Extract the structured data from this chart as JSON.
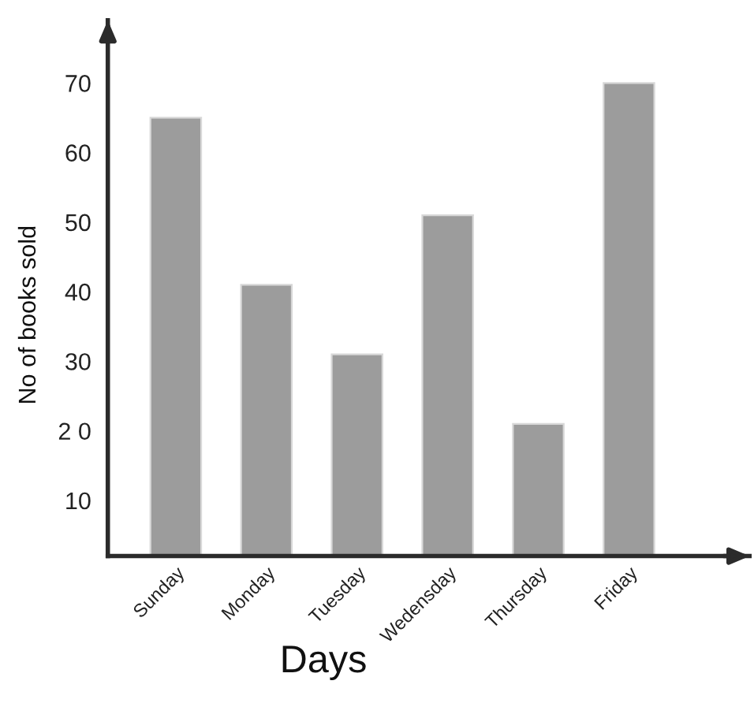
{
  "chart_data": {
    "type": "bar",
    "xlabel": "Days",
    "ylabel": "No of books sold",
    "categories": [
      "Sunday",
      "Monday",
      "Tuesday",
      "Wedensday",
      "Thursday",
      "Friday"
    ],
    "values": [
      65,
      41,
      31,
      51,
      21,
      70
    ],
    "color": "#9c9c9c",
    "ylim": [
      2,
      79
    ],
    "yticks": [
      10,
      {
        "value": 20,
        "label": "2 0"
      },
      30,
      40,
      50,
      60,
      70
    ]
  }
}
